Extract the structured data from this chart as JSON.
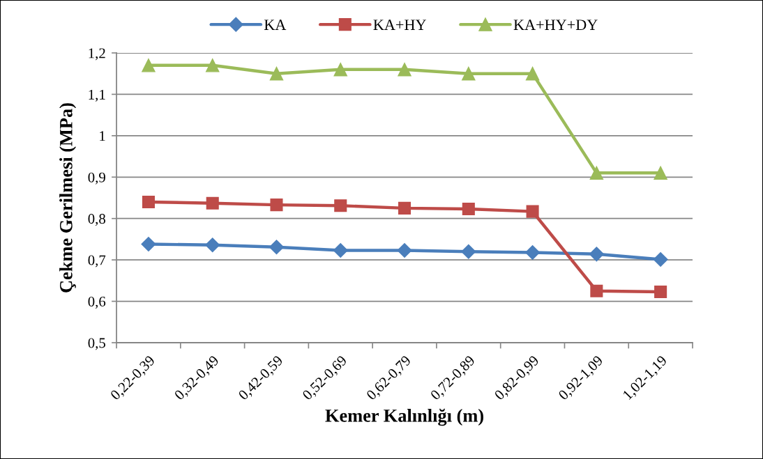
{
  "chart_data": {
    "type": "line",
    "xlabel": "Kemer Kalınlığı (m)",
    "ylabel": "Çekme Gerilmesi (MPa)",
    "categories": [
      "0,22-0,39",
      "0,32-0,49",
      "0,42-0,59",
      "0,52-0,69",
      "0,62-0,79",
      "0,72-0,89",
      "0,82-0,99",
      "0,92-1,09",
      "1,02-1,19"
    ],
    "series": [
      {
        "name": "KA",
        "color": "#4a7ebb",
        "marker": "diamond",
        "values": [
          0.738,
          0.736,
          0.731,
          0.723,
          0.723,
          0.72,
          0.718,
          0.714,
          0.701
        ]
      },
      {
        "name": "KA+HY",
        "color": "#be4b48",
        "marker": "square",
        "values": [
          0.84,
          0.837,
          0.833,
          0.831,
          0.825,
          0.823,
          0.817,
          0.625,
          0.623
        ]
      },
      {
        "name": "KA+HY+DY",
        "color": "#9bbb59",
        "marker": "triangle",
        "values": [
          1.17,
          1.17,
          1.15,
          1.16,
          1.16,
          1.15,
          1.15,
          0.91,
          0.91
        ]
      }
    ],
    "ylim": [
      0.5,
      1.2
    ],
    "yticks": [
      {
        "value": 0.5,
        "label": "0,5"
      },
      {
        "value": 0.6,
        "label": "0,6"
      },
      {
        "value": 0.7,
        "label": "0,7"
      },
      {
        "value": 0.8,
        "label": "0,8"
      },
      {
        "value": 0.9,
        "label": "0,9"
      },
      1,
      {
        "value": 1.1,
        "label": "1,1"
      },
      {
        "value": 1.2,
        "label": "1,2"
      }
    ],
    "grid": "y",
    "legend": "top",
    "line_style": "solid"
  }
}
